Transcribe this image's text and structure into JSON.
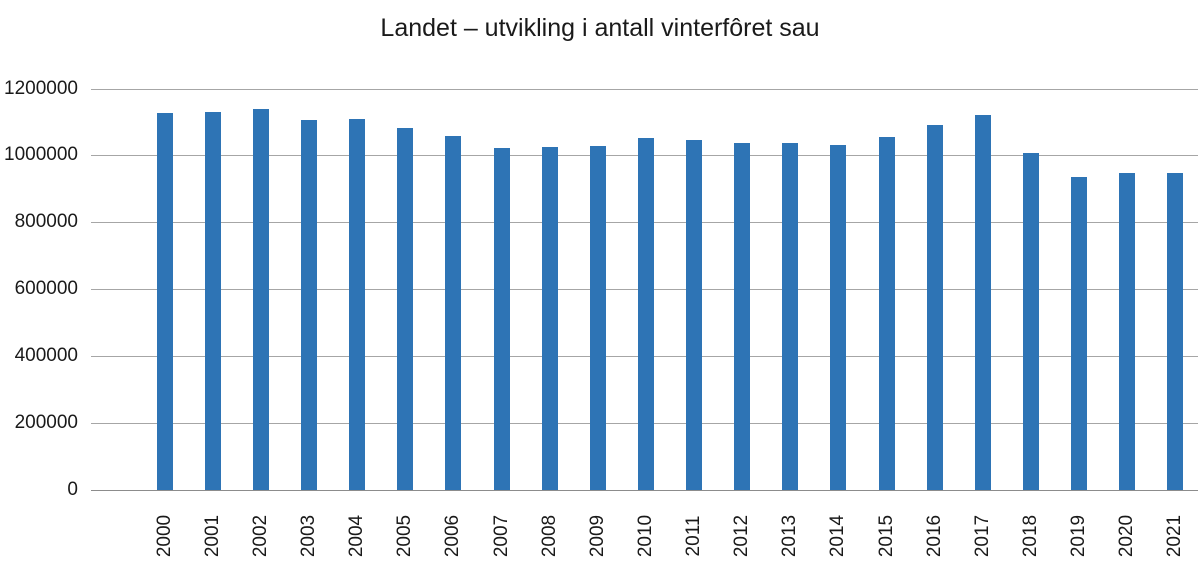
{
  "chart_data": {
    "type": "bar",
    "title": "Landet – utvikling i antall vinterfôret sau",
    "categories": [
      "2000",
      "2001",
      "2002",
      "2003",
      "2004",
      "2005",
      "2006",
      "2007",
      "2008",
      "2009",
      "2010",
      "2011",
      "2012",
      "2013",
      "2014",
      "2015",
      "2016",
      "2017",
      "2018",
      "2019",
      "2020",
      "2021"
    ],
    "values": [
      1128000,
      1129000,
      1140000,
      1105000,
      1110000,
      1081000,
      1057000,
      1021000,
      1025000,
      1028000,
      1053000,
      1045000,
      1037000,
      1036000,
      1031000,
      1055000,
      1092000,
      1120000,
      1008000,
      936000,
      947000,
      947000
    ],
    "xlabel": "",
    "ylabel": "",
    "ylim": [
      0,
      1200000
    ],
    "ytick_interval": 200000,
    "ytick_labels": [
      "0",
      "200000",
      "400000",
      "600000",
      "800000",
      "1000000",
      "1200000"
    ],
    "grid": "horizontal",
    "legend": "none",
    "bar_color": "#2e74b5",
    "gridline_color": "#a6a6a6",
    "axis_line_color": "#8c8c8c",
    "text_color": "#1a1a1a"
  }
}
